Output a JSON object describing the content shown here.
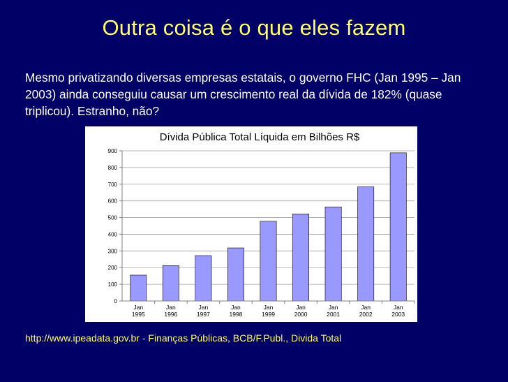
{
  "slide": {
    "title": "Outra coisa é o que eles fazem",
    "paragraph": "Mesmo privatizando diversas empresas estatais, o governo FHC (Jan 1995 – Jan 2003) ainda conseguiu causar um crescimento real da dívida de 182% (quase triplicou). Estranho, não?",
    "source": "http://www.ipeadata.gov.br - Finanças Públicas, BCB/F.Publ., Divida Total"
  },
  "colors": {
    "background": "#000066",
    "title": "#ffff66",
    "bar_fill": "#9999ff"
  },
  "chart_data": {
    "type": "bar",
    "title": "Dívida Pública Total Líquida em Bilhões R$",
    "categories": [
      [
        "Jan",
        "1995"
      ],
      [
        "Jan",
        "1996"
      ],
      [
        "Jan",
        "1997"
      ],
      [
        "Jan",
        "1998"
      ],
      [
        "Jan",
        "1999"
      ],
      [
        "Jan",
        "2000"
      ],
      [
        "Jan",
        "2001"
      ],
      [
        "Jan",
        "2002"
      ],
      [
        "Jan",
        "2003"
      ]
    ],
    "values": [
      155,
      212,
      272,
      318,
      478,
      522,
      564,
      684,
      888
    ],
    "ylim": [
      0,
      900
    ],
    "yticks": [
      0,
      100,
      200,
      300,
      400,
      500,
      600,
      700,
      800,
      900
    ],
    "grid": true,
    "legend": "none"
  }
}
